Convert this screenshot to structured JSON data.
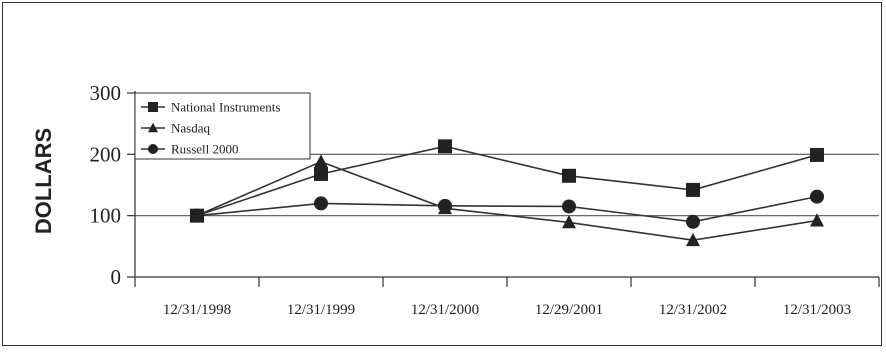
{
  "chart_data": {
    "type": "line",
    "title": "",
    "xlabel": "",
    "ylabel": "DOLLARS",
    "categories": [
      "12/31/1998",
      "12/31/1999",
      "12/31/2000",
      "12/29/2001",
      "12/31/2002",
      "12/31/2003"
    ],
    "yticks": [
      "300",
      "200",
      "100",
      "0"
    ],
    "ylim": [
      0,
      300
    ],
    "grid": "horizontal at 100 and 200",
    "legend_position": "top-left",
    "series": [
      {
        "name": "National Instruments",
        "marker": "square",
        "values": [
          100,
          168,
          213,
          165,
          142,
          199
        ]
      },
      {
        "name": "Nasdaq",
        "marker": "triangle",
        "values": [
          100,
          188,
          112,
          89,
          60,
          92
        ]
      },
      {
        "name": "Russell 2000",
        "marker": "circle",
        "values": [
          100,
          120,
          116,
          115,
          90,
          131
        ]
      }
    ],
    "colors": {
      "line": "#333333",
      "grid": "#555555",
      "marker": "#222222"
    }
  }
}
